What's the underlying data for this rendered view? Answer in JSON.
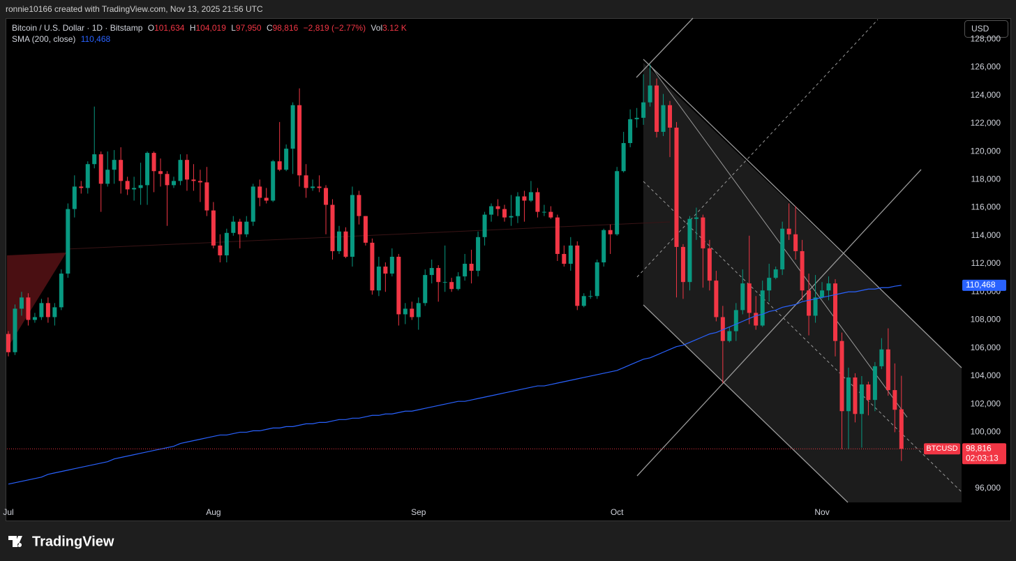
{
  "header": {
    "attribution": "ronnie10166 created with TradingView.com, Nov 13, 2025 21:56 UTC"
  },
  "legend": {
    "symbol": "Bitcoin / U.S. Dollar · 1D · Bitstamp",
    "o_label": "O",
    "open": "101,634",
    "h_label": "H",
    "high": "104,019",
    "l_label": "L",
    "low": "97,950",
    "c_label": "C",
    "close": "98,816",
    "change": "−2,819 (−2.77%)",
    "vol_label": "Vol",
    "volume": "3.12 K",
    "sma_value": "110,468"
  },
  "price_scale": {
    "currency": "USD",
    "symbol_tag": "BTCUSD",
    "last_price": "98,816",
    "countdown": "02:03:13",
    "sma_tag": "110,468"
  },
  "footer": {
    "brand": "TradingView"
  },
  "chart_data": {
    "type": "candlestick",
    "up_color": "#089981",
    "down_color": "#f23645",
    "categories": [
      "Jul",
      null,
      null,
      null,
      null,
      null,
      null,
      null,
      null,
      null,
      null,
      null,
      null,
      null,
      null,
      null,
      null,
      null,
      null,
      null,
      null,
      null,
      null,
      null,
      null,
      null,
      null,
      null,
      null,
      null,
      null,
      "Aug",
      null,
      null,
      null,
      null,
      null,
      null,
      null,
      null,
      null,
      null,
      null,
      null,
      null,
      null,
      null,
      null,
      null,
      null,
      null,
      null,
      null,
      null,
      null,
      null,
      null,
      null,
      null,
      null,
      null,
      null,
      "Sep",
      null,
      null,
      null,
      null,
      null,
      null,
      null,
      null,
      null,
      null,
      null,
      null,
      null,
      null,
      null,
      null,
      null,
      null,
      null,
      null,
      null,
      null,
      null,
      null,
      null,
      null,
      null,
      null,
      null,
      "Oct",
      null,
      null,
      null,
      null,
      null,
      null,
      null,
      null,
      null,
      null,
      null,
      null,
      null,
      null,
      null,
      null,
      null,
      null,
      null,
      null,
      null,
      null,
      null,
      null,
      null,
      null,
      null,
      null,
      null,
      null,
      "Nov",
      null,
      null,
      null,
      null,
      null,
      null,
      null,
      null,
      null,
      null,
      null,
      null
    ],
    "open": [
      107000,
      105700,
      108800,
      109600,
      108000,
      108200,
      109200,
      108200,
      108900,
      111300,
      115900,
      117500,
      117400,
      119100,
      119800,
      117700,
      118700,
      119400,
      117900,
      117300,
      117400,
      117600,
      119900,
      118600,
      118400,
      117600,
      117900,
      119400,
      118000,
      117900,
      117800,
      115800,
      113300,
      112600,
      114200,
      115000,
      114100,
      115000,
      117500,
      116700,
      116500,
      119300,
      118700,
      120200,
      123300,
      118300,
      117400,
      117500,
      117400,
      116200,
      112900,
      114300,
      112500,
      116900,
      115400,
      113500,
      110100,
      111800,
      111300,
      112500,
      108400,
      108800,
      108200,
      109200,
      111200,
      111700,
      110700,
      110700,
      110200,
      111100,
      112000,
      111500,
      113900,
      115500,
      116100,
      115900,
      115300,
      115400,
      116800,
      116500,
      117100,
      115700,
      115700,
      115300,
      112700,
      112000,
      113300,
      109000,
      109700,
      109700,
      112100,
      114400,
      114100,
      118600,
      120600,
      122300,
      122400,
      123500,
      124700,
      121400,
      123300,
      121700,
      113200,
      110700,
      115200,
      115300,
      113100,
      110800,
      108200,
      106500,
      107200,
      108700,
      110600,
      108500,
      107600,
      110100,
      111000,
      111600,
      114500,
      114100,
      112900,
      110100,
      108300,
      109600,
      110100,
      110600,
      106500,
      101500,
      103900,
      101300,
      103400,
      102300,
      104700,
      105900,
      103000,
      101634
    ],
    "high": [
      107200,
      109100,
      110000,
      109900,
      108500,
      109500,
      109600,
      109200,
      111600,
      116300,
      118300,
      117900,
      119300,
      123200,
      120000,
      120000,
      120100,
      120300,
      118200,
      118200,
      119200,
      120000,
      120000,
      119500,
      118600,
      118200,
      119800,
      119800,
      119100,
      118700,
      118900,
      116400,
      114100,
      114500,
      115400,
      115200,
      115400,
      117700,
      118000,
      117400,
      119400,
      122100,
      120500,
      123500,
      124500,
      119100,
      118000,
      118300,
      117600,
      116600,
      114700,
      114600,
      117500,
      117200,
      115400,
      113800,
      112500,
      112100,
      113100,
      112700,
      109200,
      109300,
      109600,
      111600,
      112300,
      111900,
      113300,
      111000,
      111400,
      112700,
      113000,
      114300,
      115700,
      116300,
      116600,
      116200,
      116900,
      117100,
      117200,
      117900,
      117400,
      116200,
      116100,
      115500,
      113300,
      113900,
      113600,
      109900,
      110100,
      112300,
      114500,
      114800,
      118900,
      121400,
      123000,
      123100,
      125500,
      126200,
      125200,
      124100,
      123600,
      122100,
      113400,
      115400,
      116000,
      115500,
      113700,
      111500,
      109000,
      107500,
      109200,
      111600,
      114000,
      109700,
      110800,
      112000,
      111800,
      115000,
      116300,
      116100,
      113700,
      111300,
      111200,
      110700,
      111100,
      110900,
      107100,
      104600,
      104200,
      104000,
      103600,
      105000,
      106700,
      107400,
      104900,
      104019
    ],
    "low": [
      105400,
      105500,
      108300,
      107600,
      107800,
      108000,
      107800,
      107600,
      108700,
      111000,
      115300,
      117000,
      117000,
      118800,
      115700,
      117500,
      117700,
      117000,
      116900,
      116500,
      116200,
      116200,
      117100,
      117500,
      114700,
      117400,
      117600,
      117200,
      117200,
      116400,
      115400,
      113100,
      112100,
      112100,
      114000,
      113100,
      113900,
      114700,
      116100,
      116300,
      116400,
      118600,
      118600,
      118400,
      117500,
      116700,
      117200,
      117100,
      114100,
      112300,
      112700,
      112400,
      111800,
      114800,
      113300,
      109800,
      109700,
      110000,
      111100,
      107600,
      107700,
      108000,
      107300,
      109000,
      110600,
      109300,
      110000,
      110000,
      110100,
      110800,
      110600,
      111100,
      113300,
      115000,
      115400,
      115000,
      114700,
      114900,
      115000,
      116400,
      115300,
      115400,
      115200,
      112200,
      111800,
      111500,
      108700,
      108900,
      109500,
      109500,
      111800,
      112700,
      114000,
      118500,
      120300,
      121700,
      121900,
      123200,
      121000,
      121100,
      119600,
      109600,
      109500,
      110100,
      113700,
      110300,
      110100,
      107900,
      103500,
      106400,
      106500,
      108400,
      107700,
      107300,
      107500,
      109300,
      110900,
      111200,
      113700,
      112300,
      109400,
      106900,
      107800,
      109500,
      109400,
      105400,
      98800,
      98800,
      100700,
      98900,
      101200,
      101500,
      104500,
      102600,
      100000,
      97950
    ],
    "close": [
      105700,
      108800,
      109600,
      108000,
      108200,
      109200,
      108200,
      108900,
      111300,
      115900,
      117500,
      117400,
      119100,
      119800,
      117700,
      118700,
      119400,
      117900,
      117300,
      117400,
      117600,
      119900,
      118600,
      118400,
      117600,
      117900,
      119400,
      118000,
      117900,
      117800,
      115800,
      113300,
      112600,
      114200,
      115000,
      114100,
      115000,
      117500,
      116700,
      116500,
      119300,
      118700,
      120200,
      123300,
      118300,
      117400,
      117500,
      117400,
      116200,
      112900,
      114300,
      112500,
      116900,
      115400,
      113500,
      110100,
      111800,
      111300,
      112500,
      108400,
      108800,
      108200,
      109200,
      111200,
      111700,
      110700,
      110700,
      110200,
      111100,
      112000,
      111500,
      113900,
      115500,
      116100,
      115900,
      115300,
      115400,
      116800,
      116500,
      117100,
      115700,
      115700,
      115300,
      112700,
      112000,
      113300,
      109000,
      109700,
      109700,
      112100,
      114400,
      114100,
      118600,
      120600,
      122300,
      122400,
      123500,
      124700,
      121400,
      123300,
      121700,
      113200,
      110700,
      115200,
      115300,
      113100,
      110800,
      108200,
      106500,
      107200,
      108700,
      110600,
      108500,
      107600,
      110100,
      111000,
      111600,
      114500,
      114100,
      112900,
      110100,
      108300,
      109600,
      110100,
      110600,
      106500,
      101500,
      103900,
      101300,
      103400,
      102300,
      104700,
      105900,
      103000,
      101600,
      98816
    ],
    "series": [
      {
        "name": "SMA (200, close)",
        "color": "#2962ff",
        "values": [
          96300,
          96400,
          96500,
          96600,
          96700,
          96800,
          97000,
          97100,
          97200,
          97300,
          97400,
          97500,
          97600,
          97700,
          97800,
          97900,
          98100,
          98200,
          98300,
          98400,
          98500,
          98600,
          98700,
          98800,
          98900,
          99000,
          99200,
          99300,
          99400,
          99500,
          99600,
          99700,
          99800,
          99800,
          99900,
          100000,
          100000,
          100100,
          100100,
          100200,
          100300,
          100300,
          100400,
          100400,
          100500,
          100600,
          100600,
          100700,
          100700,
          100800,
          100900,
          100900,
          101000,
          101000,
          101100,
          101200,
          101200,
          101300,
          101300,
          101400,
          101500,
          101500,
          101600,
          101700,
          101800,
          101900,
          102000,
          102100,
          102200,
          102200,
          102300,
          102400,
          102500,
          102600,
          102700,
          102800,
          102900,
          103000,
          103100,
          103200,
          103300,
          103300,
          103400,
          103500,
          103600,
          103700,
          103800,
          103900,
          104000,
          104100,
          104200,
          104300,
          104400,
          104600,
          104800,
          105000,
          105200,
          105300,
          105500,
          105700,
          105900,
          106100,
          106200,
          106400,
          106600,
          106800,
          107000,
          107100,
          107300,
          107500,
          107700,
          107900,
          108100,
          108300,
          108400,
          108600,
          108700,
          108900,
          109000,
          109100,
          109300,
          109400,
          109500,
          109600,
          109700,
          109800,
          109900,
          110000,
          110000,
          110100,
          110200,
          110200,
          110300,
          110300,
          110400,
          110468
        ]
      }
    ],
    "ylim": [
      95000,
      129500
    ],
    "yticks": [
      {
        "value": 96000,
        "label": "96,000"
      },
      {
        "value": 98000,
        "label": "98,000"
      },
      {
        "value": 100000,
        "label": "100,000"
      },
      {
        "value": 102000,
        "label": "102,000"
      },
      {
        "value": 104000,
        "label": "104,000"
      },
      {
        "value": 106000,
        "label": "106,000"
      },
      {
        "value": 108000,
        "label": "108,000"
      },
      {
        "value": 110000,
        "label": "110,000"
      },
      {
        "value": 112000,
        "label": "112,000"
      },
      {
        "value": 114000,
        "label": "114,000"
      },
      {
        "value": 116000,
        "label": "116,000"
      },
      {
        "value": 118000,
        "label": "118,000"
      },
      {
        "value": 120000,
        "label": "120,000"
      },
      {
        "value": 122000,
        "label": "122,000"
      },
      {
        "value": 124000,
        "label": "124,000"
      },
      {
        "value": 126000,
        "label": "126,000"
      },
      {
        "value": 128000,
        "label": "128,000"
      }
    ],
    "grid": false
  }
}
